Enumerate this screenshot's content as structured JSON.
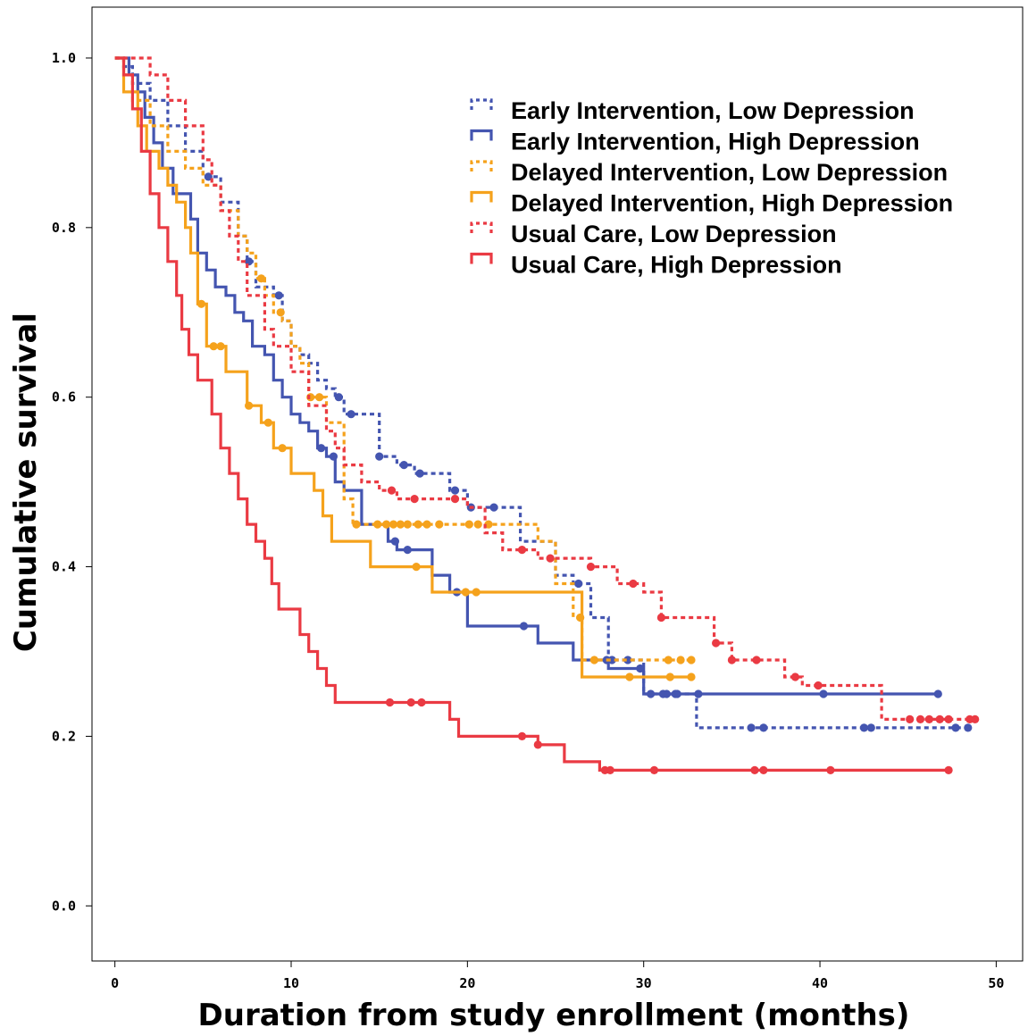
{
  "chart_data": {
    "type": "line",
    "subtype": "kaplan-meier step curves with censor markers",
    "title": "",
    "xlabel": "Duration from study enrollment (months)",
    "ylabel": "Cumulative survival",
    "xlim": [
      -1.3,
      51.5
    ],
    "ylim": [
      -0.065,
      1.06
    ],
    "x_ticks": [
      "0",
      "10",
      "20",
      "30",
      "40",
      "50"
    ],
    "y_ticks": [
      "0.0",
      "0.2",
      "0.4",
      "0.6",
      "0.8",
      "1.0"
    ],
    "grid": false,
    "legend_position": "top-right",
    "series": [
      {
        "name": "Early Intervention, Low Depression",
        "color": "#4455b0",
        "style": "dotted",
        "steps": [
          [
            0,
            1.0
          ],
          [
            0.5,
            0.99
          ],
          [
            1,
            0.97
          ],
          [
            2,
            0.95
          ],
          [
            3,
            0.92
          ],
          [
            4,
            0.89
          ],
          [
            5,
            0.86
          ],
          [
            6,
            0.83
          ],
          [
            7,
            0.79
          ],
          [
            7.5,
            0.76
          ],
          [
            8,
            0.73
          ],
          [
            9,
            0.72
          ],
          [
            9.5,
            0.69
          ],
          [
            10,
            0.66
          ],
          [
            10.5,
            0.65
          ],
          [
            11,
            0.64
          ],
          [
            11.5,
            0.62
          ],
          [
            12,
            0.61
          ],
          [
            12.5,
            0.6
          ],
          [
            13,
            0.58
          ],
          [
            14,
            0.58
          ],
          [
            15,
            0.53
          ],
          [
            16,
            0.52
          ],
          [
            17,
            0.51
          ],
          [
            18,
            0.51
          ],
          [
            19,
            0.49
          ],
          [
            20,
            0.47
          ],
          [
            22,
            0.47
          ],
          [
            23,
            0.43
          ],
          [
            25,
            0.39
          ],
          [
            26,
            0.38
          ],
          [
            27,
            0.34
          ],
          [
            28,
            0.29
          ],
          [
            30,
            0.25
          ],
          [
            33,
            0.21
          ],
          [
            48.5,
            0.21
          ]
        ],
        "censor_x": [
          5.3,
          7.6,
          9.3,
          12.7,
          13.4,
          15.0,
          16.4,
          17.3,
          19.3,
          20.2,
          21.5,
          26.3,
          28.2,
          29.1,
          31.3,
          31.9,
          36.1,
          36.8,
          42.5,
          42.9,
          47.7,
          48.4
        ]
      },
      {
        "name": "Early Intervention, High Depression",
        "color": "#4455b0",
        "style": "solid",
        "steps": [
          [
            0,
            1.0
          ],
          [
            0.8,
            0.98
          ],
          [
            1.3,
            0.96
          ],
          [
            1.7,
            0.93
          ],
          [
            2.2,
            0.9
          ],
          [
            2.7,
            0.87
          ],
          [
            3.3,
            0.84
          ],
          [
            4.3,
            0.81
          ],
          [
            4.7,
            0.77
          ],
          [
            5.2,
            0.75
          ],
          [
            5.7,
            0.73
          ],
          [
            6.3,
            0.72
          ],
          [
            6.8,
            0.7
          ],
          [
            7.3,
            0.69
          ],
          [
            7.8,
            0.66
          ],
          [
            8.5,
            0.65
          ],
          [
            9,
            0.62
          ],
          [
            9.5,
            0.6
          ],
          [
            10,
            0.58
          ],
          [
            10.5,
            0.57
          ],
          [
            11,
            0.56
          ],
          [
            11.5,
            0.54
          ],
          [
            12,
            0.53
          ],
          [
            12.5,
            0.5
          ],
          [
            13,
            0.49
          ],
          [
            14,
            0.45
          ],
          [
            15,
            0.45
          ],
          [
            15.5,
            0.43
          ],
          [
            16,
            0.42
          ],
          [
            18,
            0.39
          ],
          [
            19,
            0.37
          ],
          [
            20,
            0.33
          ],
          [
            24,
            0.31
          ],
          [
            26,
            0.29
          ],
          [
            28,
            0.28
          ],
          [
            30,
            0.25
          ],
          [
            46.7,
            0.25
          ]
        ],
        "censor_x": [
          11.7,
          12.4,
          15.9,
          16.6,
          19.4,
          23.2,
          27.9,
          29.8,
          30.4,
          31.1,
          31.8,
          33.1,
          40.2,
          46.7
        ]
      },
      {
        "name": "Delayed Intervention, Low Depression",
        "color": "#f5a21c",
        "style": "dotted",
        "steps": [
          [
            0,
            1.0
          ],
          [
            0.5,
            0.98
          ],
          [
            1,
            0.95
          ],
          [
            2,
            0.92
          ],
          [
            3,
            0.89
          ],
          [
            4,
            0.87
          ],
          [
            5,
            0.85
          ],
          [
            6,
            0.82
          ],
          [
            7,
            0.79
          ],
          [
            7.5,
            0.77
          ],
          [
            8,
            0.74
          ],
          [
            8.5,
            0.72
          ],
          [
            9,
            0.7
          ],
          [
            9.5,
            0.69
          ],
          [
            10,
            0.66
          ],
          [
            10.5,
            0.64
          ],
          [
            11,
            0.6
          ],
          [
            12,
            0.57
          ],
          [
            13,
            0.48
          ],
          [
            13.5,
            0.45
          ],
          [
            24,
            0.43
          ],
          [
            25,
            0.38
          ],
          [
            26,
            0.34
          ],
          [
            26.5,
            0.29
          ],
          [
            32.8,
            0.29
          ]
        ],
        "censor_x": [
          8.3,
          9.4,
          11.1,
          11.6,
          13.7,
          14.9,
          15.4,
          15.8,
          16.2,
          16.6,
          17.2,
          17.7,
          18.4,
          20.1,
          20.6,
          21.2,
          26.4,
          27.2,
          31.4,
          32.1,
          32.7
        ]
      },
      {
        "name": "Delayed Intervention, High Depression",
        "color": "#f5a21c",
        "style": "solid",
        "steps": [
          [
            0,
            1.0
          ],
          [
            0.5,
            0.96
          ],
          [
            1.3,
            0.92
          ],
          [
            1.8,
            0.89
          ],
          [
            2.5,
            0.87
          ],
          [
            3,
            0.85
          ],
          [
            3.5,
            0.83
          ],
          [
            4,
            0.8
          ],
          [
            4.3,
            0.77
          ],
          [
            4.7,
            0.71
          ],
          [
            5.2,
            0.66
          ],
          [
            6.3,
            0.63
          ],
          [
            7.5,
            0.59
          ],
          [
            8.3,
            0.57
          ],
          [
            9,
            0.54
          ],
          [
            10,
            0.51
          ],
          [
            11.3,
            0.49
          ],
          [
            11.8,
            0.46
          ],
          [
            12.3,
            0.43
          ],
          [
            14.5,
            0.4
          ],
          [
            18,
            0.37
          ],
          [
            26.5,
            0.27
          ],
          [
            32.8,
            0.27
          ]
        ],
        "censor_x": [
          4.9,
          5.6,
          6.0,
          7.6,
          8.7,
          9.5,
          17.1,
          19.9,
          20.5,
          29.2,
          31.5,
          32.7
        ]
      },
      {
        "name": "Usual Care, Low Depression",
        "color": "#ea3a43",
        "style": "dotted",
        "steps": [
          [
            0,
            1.0
          ],
          [
            2,
            0.98
          ],
          [
            3,
            0.95
          ],
          [
            4,
            0.92
          ],
          [
            5,
            0.88
          ],
          [
            5.5,
            0.85
          ],
          [
            6,
            0.82
          ],
          [
            6.5,
            0.79
          ],
          [
            7,
            0.76
          ],
          [
            7.5,
            0.72
          ],
          [
            8.5,
            0.68
          ],
          [
            9,
            0.66
          ],
          [
            10,
            0.63
          ],
          [
            11,
            0.59
          ],
          [
            12,
            0.56
          ],
          [
            12.5,
            0.54
          ],
          [
            13,
            0.52
          ],
          [
            14,
            0.5
          ],
          [
            15,
            0.49
          ],
          [
            16,
            0.48
          ],
          [
            20,
            0.47
          ],
          [
            21,
            0.44
          ],
          [
            22,
            0.42
          ],
          [
            24,
            0.41
          ],
          [
            27,
            0.4
          ],
          [
            28.5,
            0.38
          ],
          [
            30,
            0.37
          ],
          [
            31,
            0.34
          ],
          [
            34,
            0.31
          ],
          [
            35,
            0.29
          ],
          [
            38,
            0.27
          ],
          [
            39,
            0.26
          ],
          [
            43.5,
            0.22
          ],
          [
            48.8,
            0.22
          ]
        ],
        "censor_x": [
          15.7,
          17.0,
          19.3,
          23.1,
          24.7,
          27.0,
          29.4,
          31.0,
          34.1,
          35.0,
          36.4,
          38.6,
          39.9,
          45.1,
          45.7,
          46.2,
          46.8,
          47.3,
          48.5,
          48.8
        ]
      },
      {
        "name": "Usual Care, High Depression",
        "color": "#ea3a43",
        "style": "solid",
        "steps": [
          [
            0,
            1.0
          ],
          [
            0.5,
            0.98
          ],
          [
            1,
            0.94
          ],
          [
            1.5,
            0.89
          ],
          [
            2,
            0.84
          ],
          [
            2.5,
            0.8
          ],
          [
            3,
            0.76
          ],
          [
            3.5,
            0.72
          ],
          [
            3.8,
            0.68
          ],
          [
            4.2,
            0.65
          ],
          [
            4.7,
            0.62
          ],
          [
            5.5,
            0.58
          ],
          [
            6,
            0.54
          ],
          [
            6.5,
            0.51
          ],
          [
            7,
            0.48
          ],
          [
            7.5,
            0.45
          ],
          [
            8,
            0.43
          ],
          [
            8.5,
            0.41
          ],
          [
            8.9,
            0.38
          ],
          [
            9.3,
            0.35
          ],
          [
            10.5,
            0.32
          ],
          [
            11,
            0.3
          ],
          [
            11.5,
            0.28
          ],
          [
            12,
            0.26
          ],
          [
            12.5,
            0.24
          ],
          [
            19,
            0.22
          ],
          [
            19.5,
            0.2
          ],
          [
            24,
            0.19
          ],
          [
            25.5,
            0.17
          ],
          [
            27.5,
            0.16
          ],
          [
            47.3,
            0.16
          ]
        ],
        "censor_x": [
          15.6,
          16.8,
          17.4,
          23.1,
          24.0,
          27.8,
          28.1,
          30.6,
          36.3,
          36.8,
          40.6,
          47.3
        ]
      }
    ]
  }
}
